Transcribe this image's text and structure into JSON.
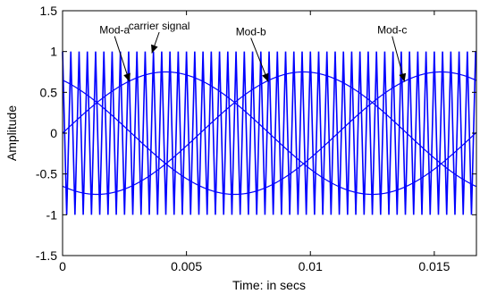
{
  "chart_data": {
    "type": "line",
    "title": "",
    "xlabel": "Time: in secs",
    "ylabel": "Amplitude",
    "xlim": [
      0,
      0.0167
    ],
    "ylim": [
      -1.5,
      1.5
    ],
    "xticks": [
      0,
      0.005,
      0.01,
      0.015
    ],
    "xtick_labels": [
      "0",
      "0.005",
      "0.01",
      "0.015"
    ],
    "yticks": [
      -1.5,
      -1,
      -0.5,
      0,
      0.5,
      1,
      1.5
    ],
    "ytick_labels": [
      "-1.5",
      "-1",
      "-0.5",
      "0",
      "0.5",
      "1",
      "1.5"
    ],
    "grid": false,
    "line_color": "#0000ff",
    "series": [
      {
        "kind": "triangle-carrier",
        "amplitude": 1,
        "frequency_hz": 3000,
        "x_start": 0,
        "x_end": 0.0167
      },
      {
        "kind": "sine",
        "amplitude": 0.75,
        "frequency_hz": 60,
        "phase_deg": 0
      },
      {
        "kind": "sine",
        "amplitude": 0.75,
        "frequency_hz": 60,
        "phase_deg": -120
      },
      {
        "kind": "sine",
        "amplitude": 0.75,
        "frequency_hz": 60,
        "phase_deg": 120
      }
    ],
    "annotations": [
      {
        "text": "Mod-a",
        "label_x": 0.0021,
        "label_y": 1.22,
        "arrow_to_x": 0.0027,
        "arrow_to_y": 0.63
      },
      {
        "text": "carrier signal",
        "label_x": 0.0039,
        "label_y": 1.27,
        "arrow_to_x": 0.0036,
        "arrow_to_y": 0.98
      },
      {
        "text": "Mod-b",
        "label_x": 0.0076,
        "label_y": 1.2,
        "arrow_to_x": 0.0083,
        "arrow_to_y": 0.63
      },
      {
        "text": "Mod-c",
        "label_x": 0.0133,
        "label_y": 1.22,
        "arrow_to_x": 0.0138,
        "arrow_to_y": 0.63
      }
    ]
  }
}
